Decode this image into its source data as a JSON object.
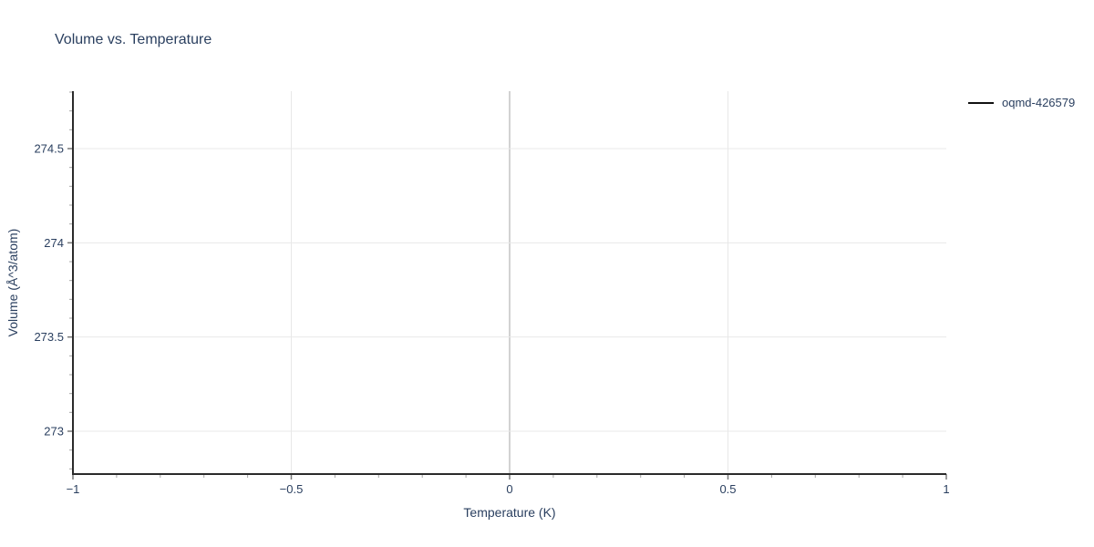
{
  "colors": {
    "background": "#ffffff",
    "text": "#2a3f5f",
    "axis_line": "#2b2b2b",
    "grid_line": "#e8e8e8",
    "zero_line": "#d2d2d2",
    "major_tick": "#7a7a7a",
    "minor_tick": "#a6a6a6",
    "legend_line": "#111111"
  },
  "chart_data": {
    "type": "line",
    "title": "Volume vs. Temperature",
    "xlabel": "Temperature (K)",
    "ylabel": "Volume (Å^3/atom)",
    "xlim": [
      -1,
      1
    ],
    "ylim": [
      272.7726,
      274.8048
    ],
    "xticks": [
      -1,
      -0.5,
      0,
      0.5,
      1
    ],
    "xtick_labels": [
      "−1",
      "−0.5",
      "0",
      "0.5",
      "1"
    ],
    "yticks": [
      273,
      273.5,
      274,
      274.5
    ],
    "ytick_labels": [
      "273",
      "273.5",
      "274",
      "274.5"
    ],
    "minor_tick_step": 0.1,
    "grid": true,
    "x_zeroline": 0,
    "legend": {
      "position": "top-right-outside",
      "entries": [
        {
          "label": "oqmd-426579",
          "color": "#111111",
          "type": "line"
        }
      ]
    },
    "series": [
      {
        "name": "oqmd-426579",
        "color": "#111111",
        "x": [],
        "y": []
      }
    ]
  }
}
